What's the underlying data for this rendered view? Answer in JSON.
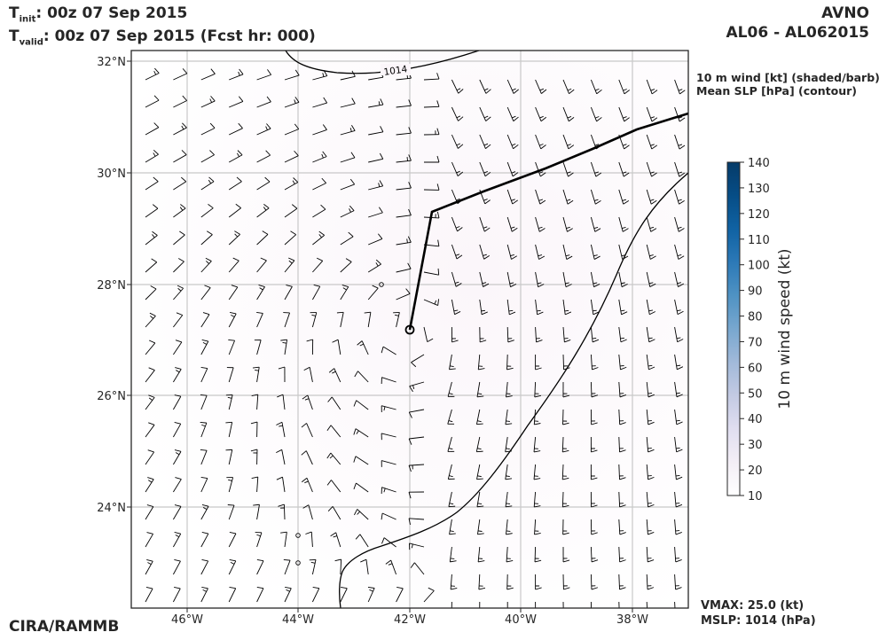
{
  "header": {
    "t_init_label": "T",
    "t_init_sub": "init",
    "t_init_value": ":  00z 07 Sep 2015",
    "t_valid_label": "T",
    "t_valid_sub": "valid",
    "t_valid_value": ": 00z 07 Sep 2015 (Fcst hr: 000)",
    "model": "AVNO",
    "storm": "AL06 - AL062015"
  },
  "legend_notes": {
    "line1": "10 m wind [kt] (shaded/barb)",
    "line2": "Mean SLP [hPa] (contour)"
  },
  "map": {
    "lon_ticks": [
      "46°W",
      "44°W",
      "42°W",
      "40°W",
      "38°W"
    ],
    "lat_ticks": [
      "32°N",
      "30°N",
      "28°N",
      "26°N",
      "24°N"
    ],
    "contour_label": "1014",
    "lon_range": [
      -47,
      -37
    ],
    "lat_range": [
      22.2,
      32.2
    ]
  },
  "colorbar": {
    "label": "10 m wind speed (kt)",
    "ticks": [
      "140",
      "130",
      "120",
      "110",
      "100",
      "90",
      "80",
      "70",
      "60",
      "50",
      "40",
      "30",
      "20",
      "10"
    ],
    "colors": [
      "#ffffff",
      "#f3eef6",
      "#e0def0",
      "#c3cae3",
      "#a1b9d9",
      "#78a7cf",
      "#4f92c3",
      "#2c79b7",
      "#1062a3",
      "#064d86",
      "#053b69"
    ]
  },
  "stats": {
    "vmax": "VMAX:  25.0 (kt)",
    "mslp": "MSLP: 1014 (hPa)"
  },
  "credit": "CIRA/RAMMB"
}
